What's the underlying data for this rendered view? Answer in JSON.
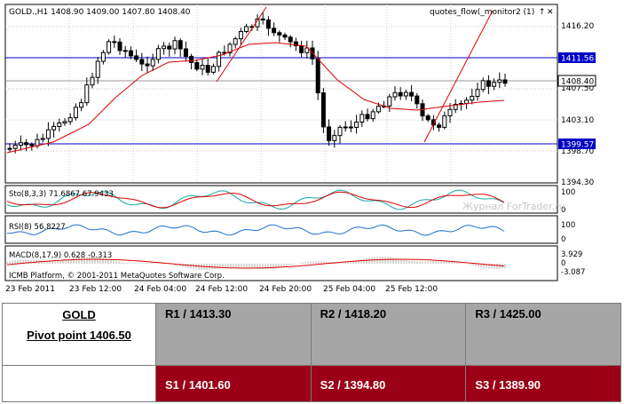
{
  "chart_window": {
    "header": "GOLD.,H1  1408.90 1409.00 1407.80 1408.40",
    "indicator_name": "quotes_flow(_monitor2 (1)",
    "up_arrow_glyph": "↑",
    "close_glyph": "✕",
    "watermark": "Журнал ForTrader.ru",
    "copyright": "ICMB Platform, © 2001-2011 MetaQuotes Software Corp.",
    "main_price_axis": [
      "1416.20",
      "1407.50",
      "1403.10",
      "1398.70",
      "1394.30"
    ],
    "price_tags": {
      "resistance": "1411.56",
      "current": "1408.40",
      "support": "1399.57"
    },
    "time_axis": [
      "23 Feb 2011",
      "23 Feb 12:00",
      "24 Feb 04:00",
      "24 Feb 12:00",
      "24 Feb 20:00",
      "25 Feb 04:00",
      "25 Feb 12:00"
    ],
    "stochastic": {
      "label": "Sto(8,3,3) 71.6867 67.9433",
      "axis": [
        "100",
        "0"
      ]
    },
    "rsi": {
      "label": "RSI(8) 56.8227",
      "axis": [
        "100",
        "0"
      ]
    },
    "macd": {
      "label": "MACD(8,17,9) 0.628 -0.313",
      "axis": [
        "3.929",
        "0",
        "-3.087"
      ]
    },
    "colors": {
      "candle": "#000000",
      "ma": "#e00000",
      "level": "#0000c8",
      "tag_bg": "#0000c8",
      "price_tag_bg": "#ffffff",
      "sto_main": "#1aa6a6",
      "sto_signal": "#e00000",
      "rsi": "#1f6fd0",
      "macd": "#c8c8c8",
      "macd_signal": "#e00000"
    }
  },
  "pivot_table": {
    "symbol": "GOLD",
    "pivot": "Pivot point 1406.50",
    "resistance": [
      "R1 / 1413.30",
      "R2 / 1418.20",
      "R3 / 1425.00"
    ],
    "support": [
      "S1 / 1401.60",
      "S2 / 1394.80",
      "S3 / 1389.90"
    ],
    "colors": {
      "resistance_bg": "#a6a6a6",
      "support_bg": "#9b0018",
      "support_text": "#ffffff"
    }
  }
}
